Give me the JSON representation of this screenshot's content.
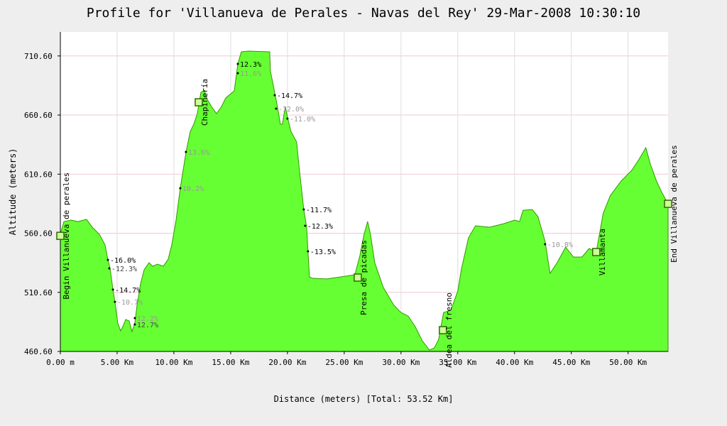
{
  "chart_data": {
    "type": "area",
    "title": "Profile for 'Villanueva de Perales - Navas del Rey' 29-Mar-2008 10:30:10",
    "x_label": "Distance (meters) [Total: 53.52 Km]",
    "y_label": "Altitude (meters)",
    "xlim": [
      0,
      53.52
    ],
    "ylim": [
      460.6,
      730.9
    ],
    "xticks": [
      {
        "value": 0,
        "label": "0.00 m"
      },
      {
        "value": 5,
        "label": "5.00 Km"
      },
      {
        "value": 10,
        "label": "10.00 Km"
      },
      {
        "value": 15,
        "label": "15.00 Km"
      },
      {
        "value": 20,
        "label": "20.00 Km"
      },
      {
        "value": 25,
        "label": "25.00 Km"
      },
      {
        "value": 30,
        "label": "30.00 Km"
      },
      {
        "value": 35,
        "label": "35.00 Km"
      },
      {
        "value": 40,
        "label": "40.00 Km"
      },
      {
        "value": 45,
        "label": "45.00 Km"
      },
      {
        "value": 50,
        "label": "50.00 Km"
      }
    ],
    "yticks": [
      {
        "value": 460.6,
        "label": "460.60"
      },
      {
        "value": 510.6,
        "label": "510.60"
      },
      {
        "value": 560.6,
        "label": "560.60"
      },
      {
        "value": 610.6,
        "label": "610.60"
      },
      {
        "value": 660.6,
        "label": "660.60"
      },
      {
        "value": 710.6,
        "label": "710.60"
      }
    ],
    "grid": true,
    "color": "#66ff33",
    "series": [
      {
        "name": "Altitude",
        "x": [
          0,
          0.31,
          0.94,
          1.56,
          2.31,
          2.81,
          3.44,
          3.94,
          4.19,
          4.38,
          4.63,
          4.81,
          5.06,
          5.31,
          5.5,
          5.75,
          6.06,
          6.31,
          6.56,
          6.75,
          7.06,
          7.38,
          7.81,
          8.13,
          8.56,
          9.06,
          9.5,
          9.81,
          10.19,
          10.56,
          11.06,
          11.44,
          11.75,
          12.06,
          12.38,
          12.69,
          12.94,
          13.31,
          13.75,
          14.19,
          14.56,
          15.0,
          15.31,
          15.63,
          15.94,
          16.56,
          18.44,
          18.5,
          18.75,
          19.06,
          19.38,
          19.56,
          19.81,
          20.0,
          20.31,
          20.81,
          21.06,
          21.44,
          21.69,
          21.94,
          22.19,
          23.44,
          24.69,
          25.94,
          26.38,
          26.75,
          27.06,
          27.31,
          27.69,
          28.44,
          29.38,
          30.0,
          30.63,
          31.25,
          31.88,
          32.5,
          32.94,
          33.31,
          33.75,
          34.38,
          35.0,
          35.31,
          35.94,
          36.56,
          37.81,
          39.06,
          40.0,
          40.44,
          40.75,
          41.56,
          42.06,
          42.69,
          43.13,
          43.75,
          44.5,
          45.19,
          45.94,
          46.56,
          47.19,
          47.81,
          48.44,
          49.38,
          50.31,
          50.94,
          51.56,
          51.94,
          52.5,
          52.94,
          53.52
        ],
        "values": [
          559.7,
          570.5,
          571.7,
          570.5,
          572.3,
          565.7,
          559.7,
          550.7,
          538.1,
          530.9,
          512.9,
          502.6,
          484.6,
          478.0,
          481.6,
          487.6,
          486.4,
          477.4,
          484.6,
          499.6,
          517.7,
          529.7,
          535.7,
          532.7,
          534.5,
          532.7,
          538.7,
          550.7,
          571.7,
          598.7,
          628.8,
          646.8,
          652.8,
          661.8,
          679.8,
          681.6,
          673.8,
          667.8,
          661.8,
          667.8,
          675.0,
          678.6,
          681.0,
          703.9,
          714.1,
          714.7,
          714.1,
          697.8,
          685.8,
          670.8,
          652.8,
          652.8,
          667.8,
          658.8,
          646.8,
          637.8,
          613.8,
          580.7,
          565.7,
          523.7,
          522.5,
          521.9,
          523.7,
          525.5,
          541.7,
          559.7,
          570.5,
          559.7,
          535.7,
          514.7,
          499.6,
          493.6,
          490.6,
          481.6,
          469.6,
          461.8,
          463.6,
          470.8,
          493.6,
          495.4,
          511.7,
          529.7,
          556.7,
          566.9,
          565.7,
          568.7,
          571.7,
          570.5,
          580.1,
          580.7,
          574.7,
          553.7,
          526.7,
          535.7,
          548.9,
          540.5,
          540.5,
          547.7,
          544.7,
          577.7,
          592.7,
          604.7,
          613.8,
          622.8,
          633.0,
          619.8,
          604.7,
          595.7,
          585.5
        ]
      }
    ],
    "waypoints": [
      {
        "label": "Begin Villanueva de perales",
        "x": 0,
        "y": 558.4
      },
      {
        "label": "Chapinería",
        "x": 12.19,
        "y": 671.4
      },
      {
        "label": "Presa de picadas",
        "x": 26.19,
        "y": 523.1
      },
      {
        "label": "Aldea del fresno",
        "x": 33.69,
        "y": 478.6
      },
      {
        "label": "Villamanta",
        "x": 47.19,
        "y": 544.7
      },
      {
        "label": "End Villanueva de perales",
        "x": 53.52,
        "y": 585.5
      }
    ],
    "annotations": [
      {
        "label": "-16.0%",
        "x": 4.19,
        "y": 538.1,
        "color": "#000000"
      },
      {
        "label": "-12.3%",
        "x": 4.31,
        "y": 530.9,
        "color": "#444444"
      },
      {
        "label": "-14.7%",
        "x": 4.63,
        "y": 512.9,
        "color": "#000000"
      },
      {
        "label": "-10.7%",
        "x": 4.81,
        "y": 502.6,
        "color": "#999999"
      },
      {
        "label": "12.7%",
        "x": 6.56,
        "y": 483.4,
        "color": "#444444"
      },
      {
        "label": "12.2%",
        "x": 6.56,
        "y": 488.8,
        "color": "#999999"
      },
      {
        "label": "10.2%",
        "x": 10.56,
        "y": 598.7,
        "color": "#999999"
      },
      {
        "label": "13.6%",
        "x": 11.06,
        "y": 629.4,
        "color": "#999999"
      },
      {
        "label": "12.3%",
        "x": 15.63,
        "y": 703.9,
        "color": "#000000"
      },
      {
        "label": "11.6%",
        "x": 15.63,
        "y": 696.0,
        "color": "#999999"
      },
      {
        "label": "-14.7%",
        "x": 18.88,
        "y": 677.4,
        "color": "#000000"
      },
      {
        "label": "-12.0%",
        "x": 19.0,
        "y": 666.0,
        "color": "#999999"
      },
      {
        "label": "-11.0%",
        "x": 20.0,
        "y": 657.6,
        "color": "#999999"
      },
      {
        "label": "-11.7%",
        "x": 21.44,
        "y": 580.7,
        "color": "#000000"
      },
      {
        "label": "-12.3%",
        "x": 21.56,
        "y": 566.9,
        "color": "#000000"
      },
      {
        "label": "-13.5%",
        "x": 21.81,
        "y": 545.3,
        "color": "#000000"
      },
      {
        "label": "-10.8%",
        "x": 42.69,
        "y": 551.3,
        "color": "#999999"
      }
    ]
  }
}
